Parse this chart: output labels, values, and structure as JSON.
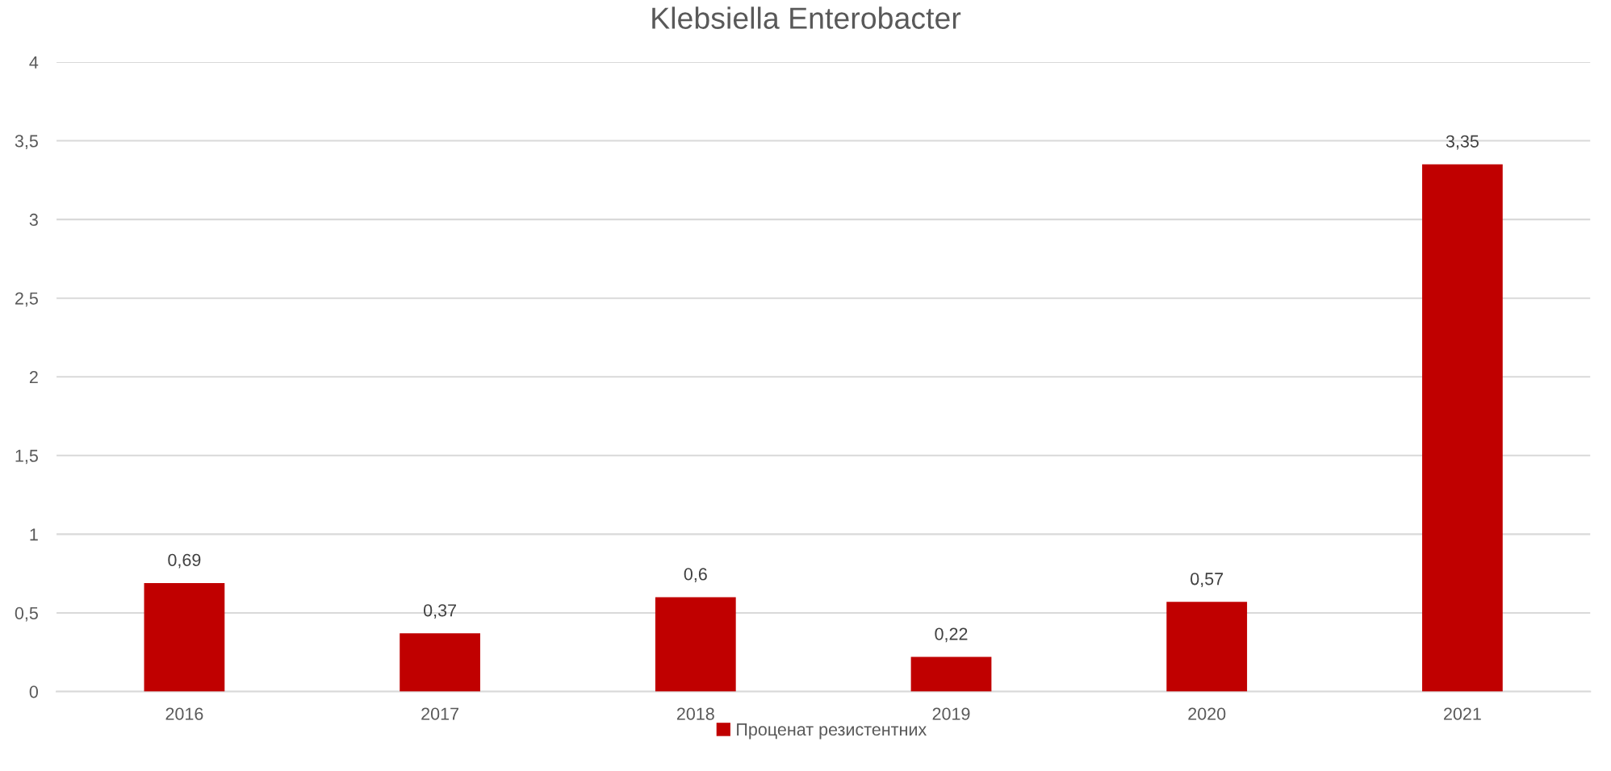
{
  "chart_data": {
    "type": "bar",
    "title": "Klebsiella Enterobacter",
    "categories": [
      "2016",
      "2017",
      "2018",
      "2019",
      "2020",
      "2021"
    ],
    "series": [
      {
        "name": "Проценат резистентних",
        "color": "#c00000",
        "values": [
          0.69,
          0.37,
          0.6,
          0.22,
          0.57,
          3.35
        ],
        "value_labels": [
          "0,69",
          "0,37",
          "0,6",
          "0,22",
          "0,57",
          "3,35"
        ]
      }
    ],
    "ylim": [
      0,
      4
    ],
    "yticks": [
      0,
      {
        "value": 0.5,
        "label": "0,5"
      },
      1,
      {
        "value": 1.5,
        "label": "1,5"
      },
      2,
      {
        "value": 2.5,
        "label": "2,5"
      },
      3,
      {
        "value": 3.5,
        "label": "3,5"
      },
      4
    ],
    "grid": "y",
    "legend": "bottom"
  }
}
